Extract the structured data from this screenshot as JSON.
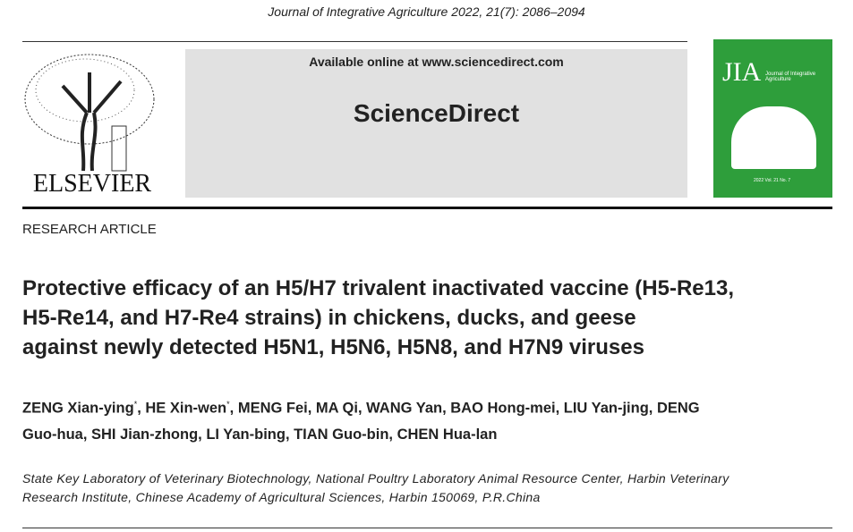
{
  "header": {
    "journal": "Journal of Integrative Agriculture  2022, 21(7): 2086–2094",
    "available": "Available online at www.sciencedirect.com",
    "platform": "ScienceDirect",
    "publisher": "ELSEVIER",
    "cover": {
      "logo": "JIA",
      "journal": "Journal of Integrative Agriculture",
      "issue": "2022  Vol. 21  No. 7"
    }
  },
  "article": {
    "type": "RESEARCH ARTICLE",
    "title_lines": [
      "Protective efficacy of an H5/H7 trivalent inactivated vaccine (H5-Re13,",
      "H5-Re14, and H7-Re4 strains) in chickens, ducks, and geese",
      "against newly detected H5N1, H5N6, H5N8, and H7N9 viruses"
    ],
    "author_lines": [
      [
        {
          "text": "ZENG Xian-ying"
        },
        {
          "sup": "*"
        },
        {
          "text": ", HE Xin-wen"
        },
        {
          "sup": "*"
        },
        {
          "text": ", MENG Fei, MA Qi, WANG Yan, BAO Hong-mei, LIU Yan-jing, DENG"
        }
      ],
      [
        {
          "text": "Guo-hua, SHI Jian-zhong, LI Yan-bing, TIAN Guo-bin, CHEN Hua-lan"
        }
      ]
    ],
    "affiliation_lines": [
      "State Key Laboratory of Veterinary Biotechnology, National Poultry Laboratory Animal Resource Center, Harbin Veterinary",
      "Research Institute, Chinese Academy of Agricultural Sciences, Harbin 150069, P.R.China"
    ]
  }
}
